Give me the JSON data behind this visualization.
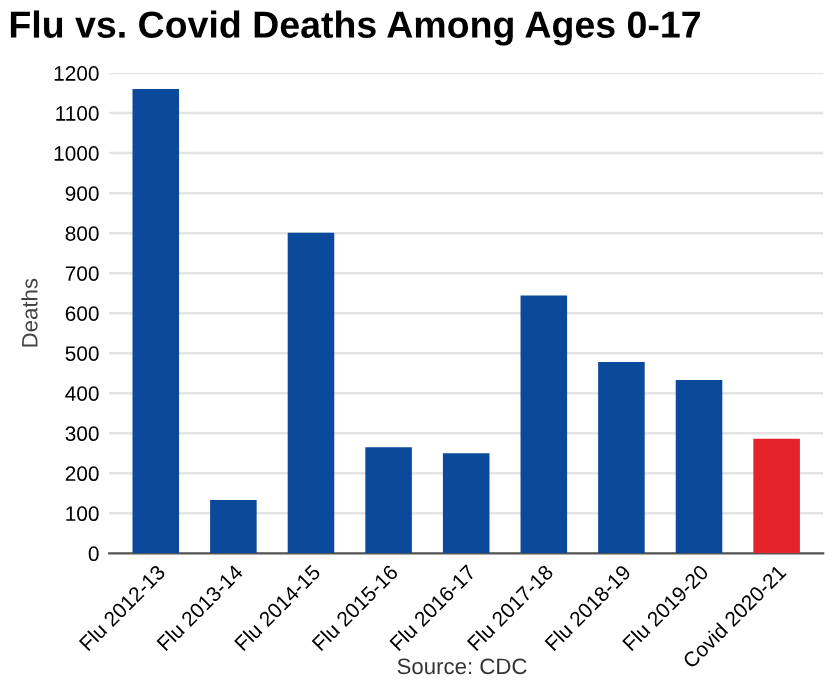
{
  "chart_data": {
    "type": "bar",
    "title": "Flu vs. Covid Deaths Among Ages 0-17",
    "ylabel": "Deaths",
    "categories": [
      "Flu 2012-13",
      "Flu 2013-14",
      "Flu 2014-15",
      "Flu 2015-16",
      "Flu 2016-17",
      "Flu 2017-18",
      "Flu 2018-19",
      "Flu 2019-20",
      "Covid 2020-21"
    ],
    "values": [
      1160,
      133,
      801,
      265,
      250,
      644,
      478,
      433,
      286
    ],
    "colors": [
      "#0b4a9a",
      "#0b4a9a",
      "#0b4a9a",
      "#0b4a9a",
      "#0b4a9a",
      "#0b4a9a",
      "#0b4a9a",
      "#0b4a9a",
      "#e3222b"
    ],
    "ylim": [
      0,
      1200
    ],
    "yticks": [
      0,
      100,
      200,
      300,
      400,
      500,
      600,
      700,
      800,
      900,
      1000,
      1100,
      1200
    ],
    "grid": "y",
    "legend": false,
    "annotations": [
      "Source: CDC"
    ]
  }
}
